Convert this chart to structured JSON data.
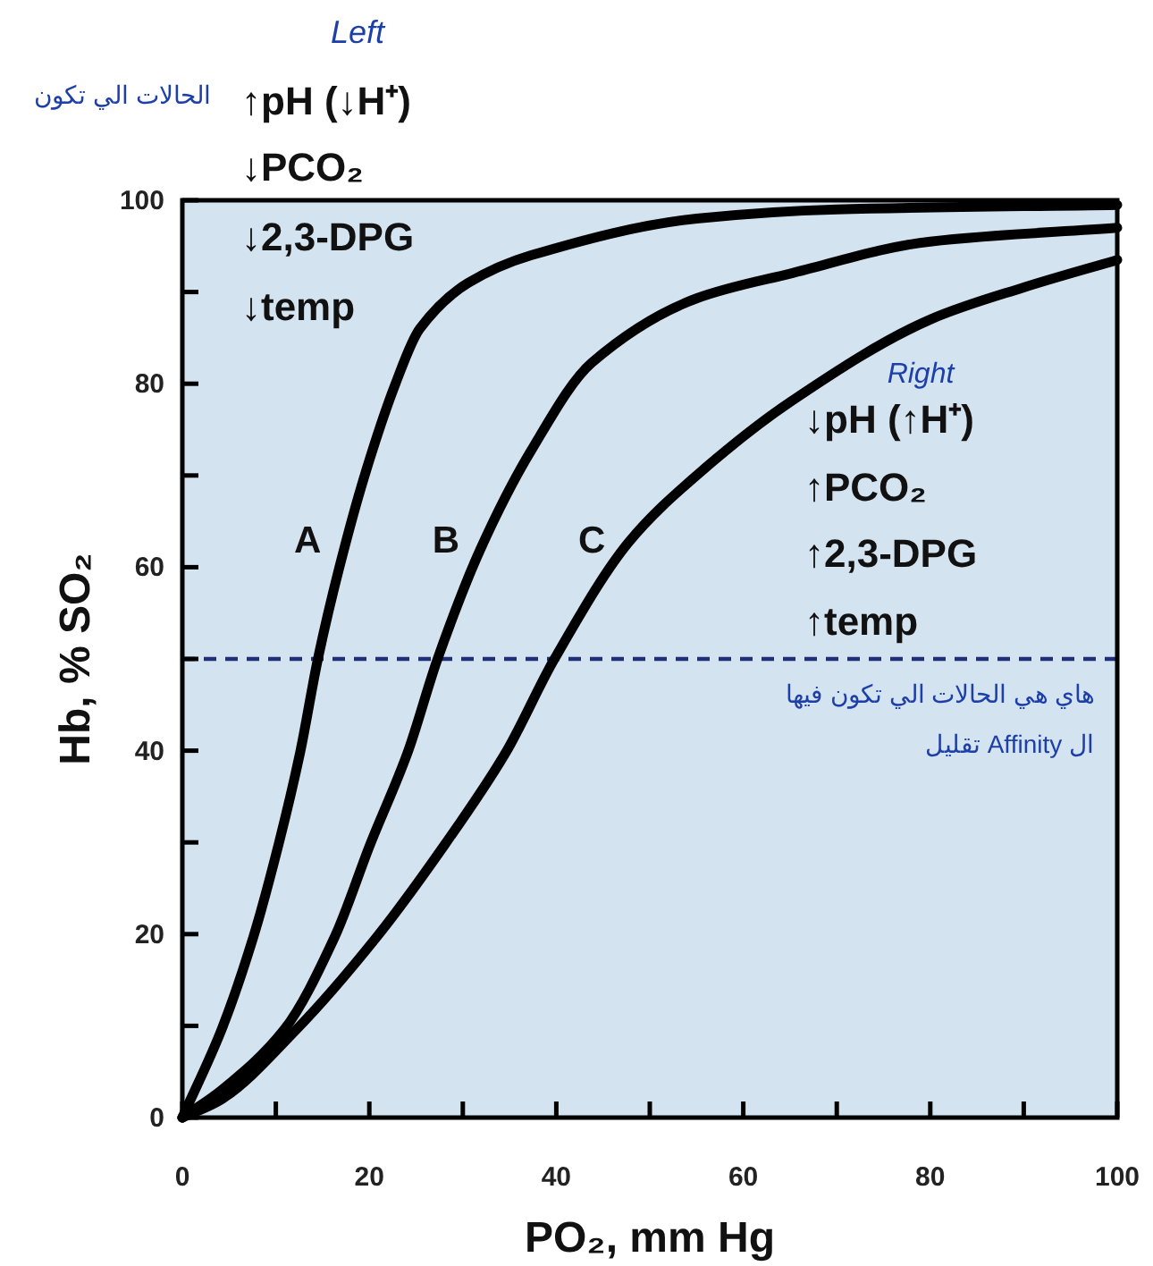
{
  "chart_data": {
    "type": "line",
    "xlabel": "PO₂, mm Hg",
    "ylabel": "Hb, % SO₂",
    "xlim": [
      0,
      100
    ],
    "ylim": [
      0,
      100
    ],
    "xticks": [
      0,
      {
        "value": 10,
        "label": null
      },
      20,
      {
        "value": 30,
        "label": null
      },
      40,
      {
        "value": 50,
        "label": null
      },
      60,
      {
        "value": 70,
        "label": null
      },
      80,
      {
        "value": 90,
        "label": null
      },
      100
    ],
    "yticks": [
      0,
      {
        "value": 10,
        "label": null
      },
      20,
      {
        "value": 30,
        "label": null
      },
      40,
      {
        "value": 50,
        "label": null
      },
      60,
      {
        "value": 70,
        "label": null
      },
      80,
      {
        "value": 90,
        "label": null
      },
      100
    ],
    "grid": false,
    "legend": false,
    "marker": "none",
    "line_style": "solid",
    "series": [
      {
        "name": "A",
        "color": "#000000",
        "x": [
          0,
          4.2,
          7.6,
          10.3,
          12.6,
          14.5,
          16.8,
          19.5,
          22.8,
          25.4,
          30.6,
          37.3,
          55,
          70,
          100
        ],
        "values": [
          0,
          9.6,
          19.7,
          29.8,
          39.8,
          50,
          60,
          70,
          80,
          86,
          91,
          94,
          98,
          99,
          99.5
        ]
      },
      {
        "name": "B",
        "color": "#000000",
        "x": [
          0,
          4.2,
          10.9,
          16.3,
          20.1,
          24.1,
          27.3,
          31.9,
          37.3,
          43.8,
          55,
          65,
          80,
          100
        ],
        "values": [
          0,
          3,
          9.6,
          19.7,
          29.8,
          39.8,
          50,
          62,
          72.7,
          82.3,
          89.3,
          92,
          95.5,
          97
        ]
      },
      {
        "name": "C",
        "color": "#000000",
        "x": [
          0,
          4.2,
          12.2,
          20.8,
          28.1,
          34.6,
          39.8,
          47.8,
          55,
          65,
          80,
          90,
          100
        ],
        "values": [
          0,
          2,
          9.6,
          19.7,
          29.8,
          39.8,
          50,
          62.8,
          70,
          78,
          87,
          90.5,
          93.5
        ]
      }
    ],
    "ref_lines": [
      {
        "axis": "y",
        "value": 50,
        "color": "#1f2f7a",
        "line_style": "dashed"
      }
    ],
    "annotations": [
      "Left",
      "الحالات الي تكون",
      "↑pH (↓H⁺)",
      "↓PCO₂",
      "↓2,3-DPG",
      "↓temp",
      "Right",
      "↓pH (↑H⁺)",
      "↑PCO₂",
      "↑2,3-DPG",
      "↑temp",
      "هاي هي الحالات الي تكون فيها",
      "ال Affinity تقليل"
    ]
  }
}
